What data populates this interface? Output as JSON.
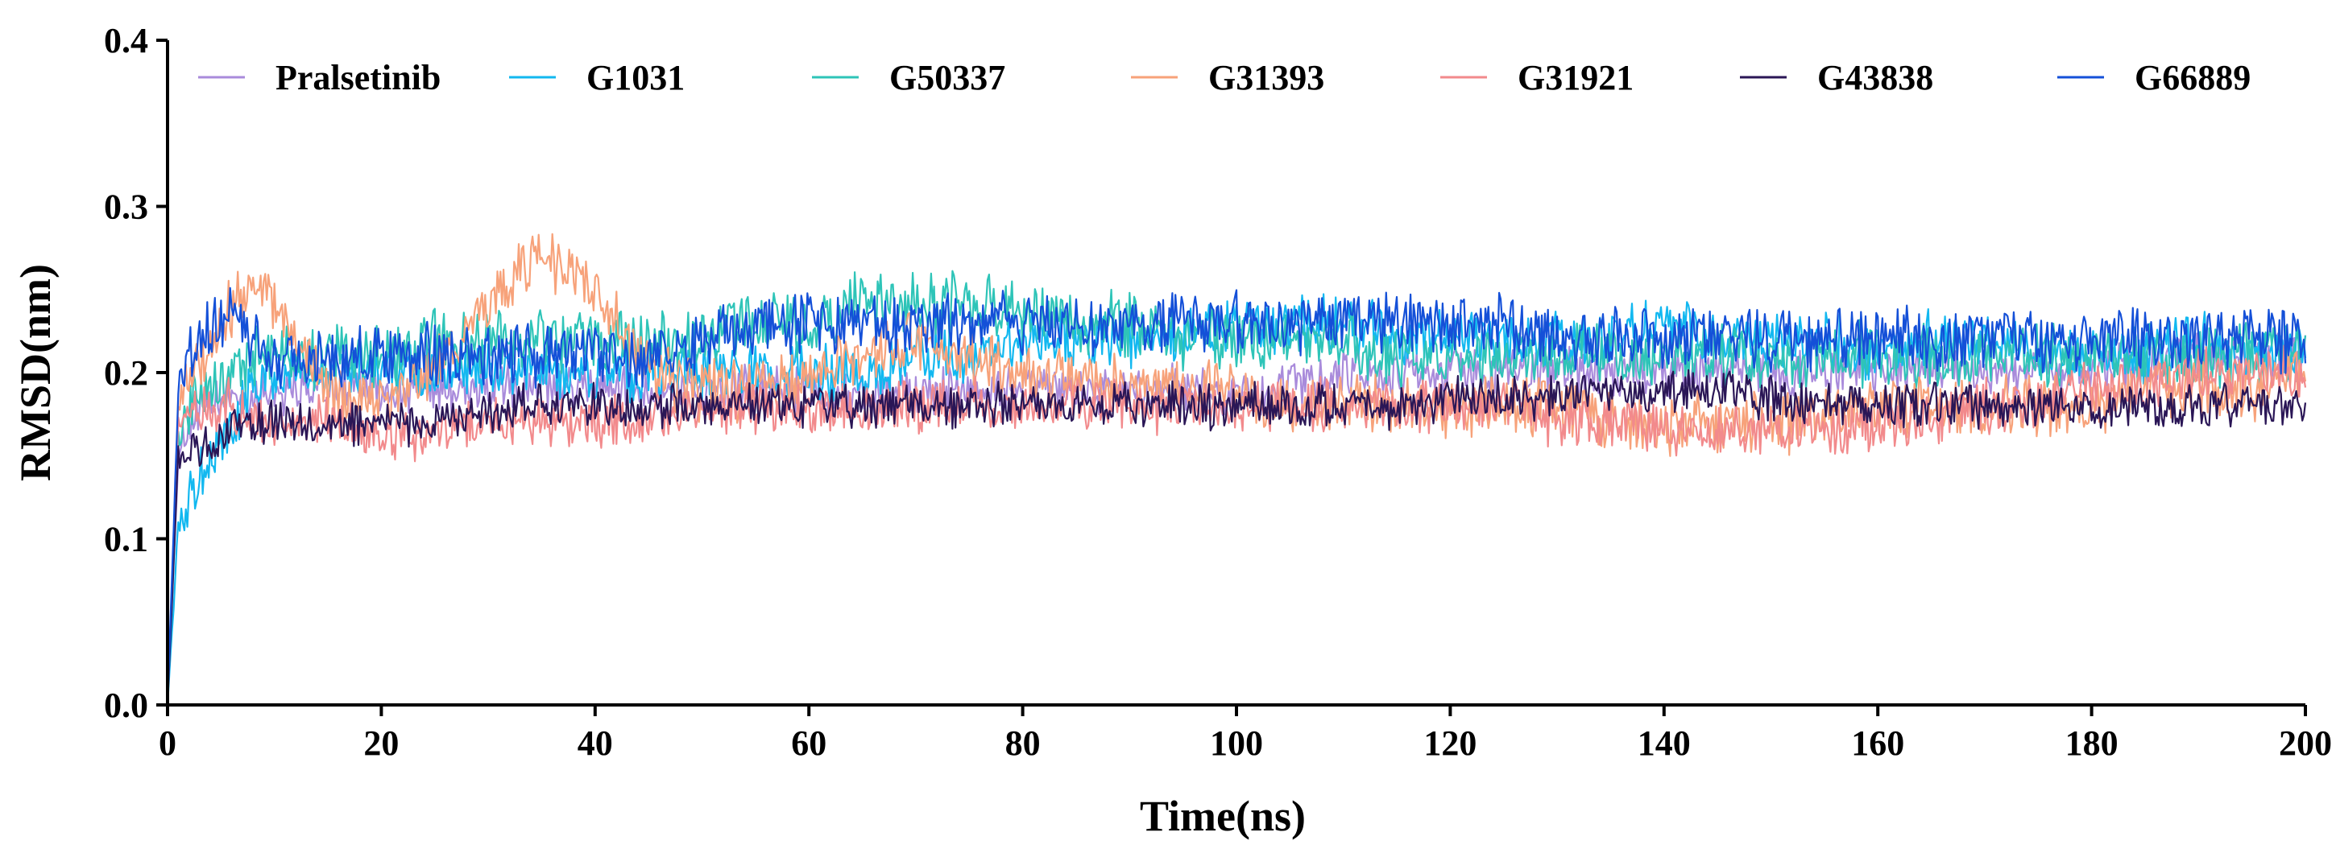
{
  "chart_data": {
    "type": "line",
    "title": "",
    "xlabel": "Time(ns)",
    "ylabel": "RMSD(nm)",
    "xlim": [
      0,
      200
    ],
    "ylim": [
      0.0,
      0.4
    ],
    "xticks": [
      0,
      20,
      40,
      60,
      80,
      100,
      120,
      140,
      160,
      180,
      200
    ],
    "xtick_labels": [
      "0",
      "20",
      "40",
      "60",
      "80",
      "100",
      "120",
      "140",
      "160",
      "180",
      "200"
    ],
    "yticks": [
      0.0,
      0.1,
      0.2,
      0.3,
      0.4
    ],
    "ytick_labels": [
      "0.0",
      "0.1",
      "0.2",
      "0.3",
      "0.4"
    ],
    "grid": false,
    "legend_position": "top",
    "x": [
      0,
      1,
      2,
      4,
      6,
      8,
      10,
      12,
      15,
      18,
      20,
      25,
      30,
      33,
      35,
      38,
      40,
      42,
      45,
      50,
      55,
      60,
      65,
      70,
      75,
      80,
      85,
      90,
      95,
      100,
      105,
      110,
      115,
      120,
      125,
      130,
      135,
      140,
      145,
      150,
      155,
      160,
      165,
      170,
      175,
      180,
      185,
      190,
      195,
      200
    ],
    "series": [
      {
        "name": "Pralsetinib",
        "color": "#A98BDB",
        "noise": 0.012,
        "values": [
          0.0,
          0.15,
          0.17,
          0.18,
          0.185,
          0.185,
          0.19,
          0.19,
          0.19,
          0.19,
          0.19,
          0.19,
          0.19,
          0.19,
          0.19,
          0.19,
          0.19,
          0.19,
          0.19,
          0.19,
          0.19,
          0.19,
          0.185,
          0.19,
          0.19,
          0.19,
          0.19,
          0.19,
          0.19,
          0.185,
          0.19,
          0.2,
          0.2,
          0.2,
          0.2,
          0.2,
          0.2,
          0.2,
          0.2,
          0.2,
          0.2,
          0.2,
          0.205,
          0.2,
          0.2,
          0.2,
          0.205,
          0.21,
          0.21,
          0.21
        ]
      },
      {
        "name": "G1031",
        "color": "#12B8F0",
        "noise": 0.014,
        "values": [
          0.0,
          0.11,
          0.12,
          0.15,
          0.17,
          0.19,
          0.2,
          0.2,
          0.2,
          0.2,
          0.2,
          0.2,
          0.2,
          0.2,
          0.2,
          0.2,
          0.2,
          0.2,
          0.2,
          0.2,
          0.2,
          0.2,
          0.2,
          0.21,
          0.21,
          0.22,
          0.22,
          0.22,
          0.22,
          0.23,
          0.23,
          0.23,
          0.22,
          0.22,
          0.22,
          0.22,
          0.22,
          0.23,
          0.22,
          0.22,
          0.22,
          0.21,
          0.22,
          0.22,
          0.21,
          0.21,
          0.21,
          0.22,
          0.21,
          0.21
        ]
      },
      {
        "name": "G50337",
        "color": "#2EC4B8",
        "noise": 0.016,
        "values": [
          0.0,
          0.16,
          0.18,
          0.19,
          0.2,
          0.21,
          0.21,
          0.21,
          0.21,
          0.21,
          0.21,
          0.22,
          0.22,
          0.22,
          0.22,
          0.22,
          0.22,
          0.22,
          0.22,
          0.22,
          0.23,
          0.23,
          0.24,
          0.24,
          0.24,
          0.24,
          0.23,
          0.23,
          0.22,
          0.22,
          0.22,
          0.22,
          0.21,
          0.21,
          0.21,
          0.21,
          0.21,
          0.21,
          0.21,
          0.21,
          0.21,
          0.21,
          0.21,
          0.21,
          0.21,
          0.21,
          0.21,
          0.21,
          0.21,
          0.21
        ]
      },
      {
        "name": "G31393",
        "color": "#F7A27A",
        "noise": 0.015,
        "values": [
          0.0,
          0.18,
          0.2,
          0.22,
          0.24,
          0.25,
          0.24,
          0.22,
          0.19,
          0.18,
          0.18,
          0.2,
          0.24,
          0.26,
          0.27,
          0.26,
          0.25,
          0.23,
          0.2,
          0.19,
          0.19,
          0.2,
          0.21,
          0.22,
          0.21,
          0.2,
          0.2,
          0.19,
          0.19,
          0.19,
          0.18,
          0.18,
          0.18,
          0.18,
          0.18,
          0.18,
          0.17,
          0.17,
          0.17,
          0.17,
          0.17,
          0.18,
          0.18,
          0.18,
          0.18,
          0.18,
          0.19,
          0.19,
          0.19,
          0.2
        ]
      },
      {
        "name": "G31921",
        "color": "#F28A8C",
        "noise": 0.013,
        "values": [
          0.0,
          0.17,
          0.18,
          0.18,
          0.18,
          0.17,
          0.17,
          0.17,
          0.17,
          0.165,
          0.16,
          0.165,
          0.17,
          0.17,
          0.17,
          0.17,
          0.17,
          0.17,
          0.17,
          0.175,
          0.18,
          0.18,
          0.18,
          0.18,
          0.18,
          0.18,
          0.18,
          0.18,
          0.18,
          0.18,
          0.18,
          0.18,
          0.18,
          0.18,
          0.18,
          0.17,
          0.17,
          0.165,
          0.165,
          0.165,
          0.165,
          0.17,
          0.17,
          0.18,
          0.18,
          0.19,
          0.19,
          0.2,
          0.2,
          0.2
        ]
      },
      {
        "name": "G43838",
        "color": "#2A1656",
        "noise": 0.011,
        "values": [
          0.0,
          0.15,
          0.15,
          0.16,
          0.165,
          0.17,
          0.17,
          0.17,
          0.17,
          0.17,
          0.17,
          0.17,
          0.175,
          0.18,
          0.18,
          0.18,
          0.18,
          0.18,
          0.18,
          0.18,
          0.18,
          0.18,
          0.18,
          0.18,
          0.18,
          0.18,
          0.18,
          0.18,
          0.18,
          0.18,
          0.18,
          0.18,
          0.18,
          0.185,
          0.185,
          0.185,
          0.19,
          0.19,
          0.19,
          0.185,
          0.18,
          0.18,
          0.18,
          0.18,
          0.18,
          0.18,
          0.18,
          0.18,
          0.18,
          0.18
        ]
      },
      {
        "name": "G66889",
        "color": "#1450D8",
        "noise": 0.015,
        "values": [
          0.0,
          0.19,
          0.21,
          0.23,
          0.24,
          0.22,
          0.21,
          0.21,
          0.21,
          0.21,
          0.21,
          0.21,
          0.21,
          0.21,
          0.21,
          0.21,
          0.21,
          0.21,
          0.21,
          0.22,
          0.23,
          0.23,
          0.23,
          0.23,
          0.23,
          0.23,
          0.23,
          0.23,
          0.23,
          0.23,
          0.23,
          0.23,
          0.23,
          0.23,
          0.23,
          0.22,
          0.22,
          0.22,
          0.22,
          0.22,
          0.22,
          0.22,
          0.22,
          0.22,
          0.22,
          0.22,
          0.22,
          0.22,
          0.22,
          0.22
        ]
      }
    ]
  }
}
